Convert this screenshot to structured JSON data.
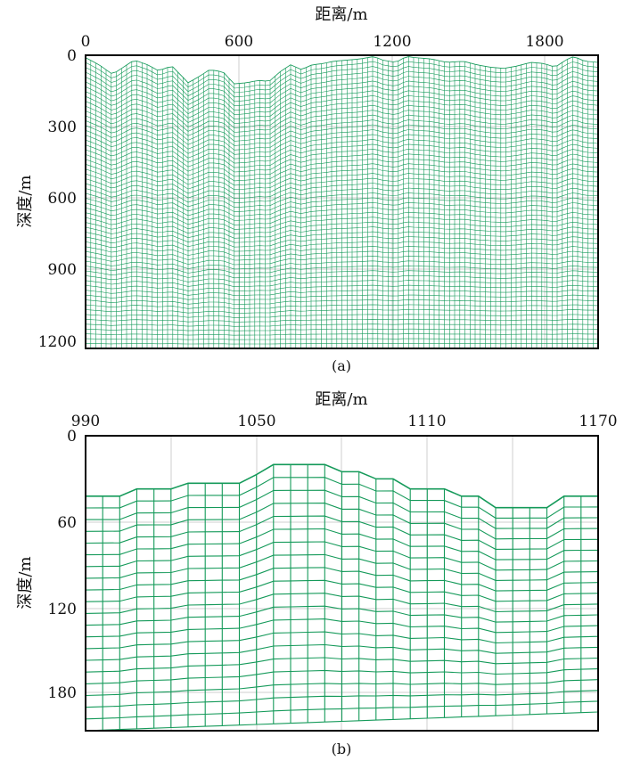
{
  "chart_data": [
    {
      "type": "mesh",
      "caption": "(a)",
      "xlabel": "距离/m",
      "ylabel": "深度/m",
      "x_ticks": [
        "0",
        "600",
        "1200",
        "1800"
      ],
      "y_ticks": [
        "0",
        "300",
        "600",
        "900",
        "1200"
      ],
      "xlim": [
        0,
        1900
      ],
      "ylim": [
        0,
        1230
      ],
      "y_inverted": true,
      "x_axis_position": "top",
      "grid": true,
      "mesh_color": "#159a5a",
      "bottom_depth": 1230,
      "layers": 60,
      "columns": 100,
      "surface": {
        "x": [
          0,
          50,
          100,
          140,
          180,
          230,
          270,
          320,
          380,
          420,
          460,
          510,
          550,
          600,
          640,
          680,
          720,
          760,
          800,
          840,
          880,
          920,
          970,
          1020,
          1070,
          1100,
          1150,
          1190,
          1220,
          1280,
          1340,
          1400,
          1450,
          1500,
          1550,
          1600,
          1650,
          1700,
          1740,
          1780,
          1810,
          1850,
          1900
        ],
        "depth": [
          10,
          40,
          80,
          50,
          20,
          40,
          65,
          45,
          115,
          90,
          60,
          70,
          120,
          115,
          105,
          110,
          70,
          40,
          60,
          40,
          35,
          25,
          20,
          15,
          5,
          20,
          30,
          5,
          10,
          15,
          30,
          25,
          40,
          50,
          55,
          45,
          30,
          35,
          50,
          20,
          5,
          25,
          30
        ]
      }
    },
    {
      "type": "mesh",
      "caption": "(b)",
      "xlabel": "距离/m",
      "ylabel": "深度/m",
      "x_ticks": [
        "990",
        "1050",
        "1110",
        "1170"
      ],
      "y_ticks": [
        "0",
        "60",
        "120",
        "180"
      ],
      "xlim": [
        990,
        1170
      ],
      "ylim": [
        0,
        205
      ],
      "y_inverted": true,
      "x_axis_position": "top",
      "grid": true,
      "mesh_color": "#159a5a",
      "bottom_depth": 205,
      "bottom_depth_right": 192,
      "layers": 20,
      "column_spacing": 6,
      "surface": {
        "x": [
          990,
          1002,
          1008,
          1014,
          1020,
          1026,
          1032,
          1038,
          1044,
          1050,
          1056,
          1062,
          1068,
          1074,
          1080,
          1086,
          1092,
          1098,
          1104,
          1110,
          1116,
          1122,
          1128,
          1134,
          1140,
          1146,
          1152,
          1158,
          1164,
          1170
        ],
        "depth": [
          42,
          42,
          37,
          37,
          37,
          33,
          33,
          33,
          33,
          27,
          20,
          20,
          20,
          20,
          25,
          25,
          30,
          30,
          37,
          37,
          37,
          42,
          42,
          50,
          50,
          50,
          50,
          42,
          42,
          42
        ]
      }
    }
  ]
}
